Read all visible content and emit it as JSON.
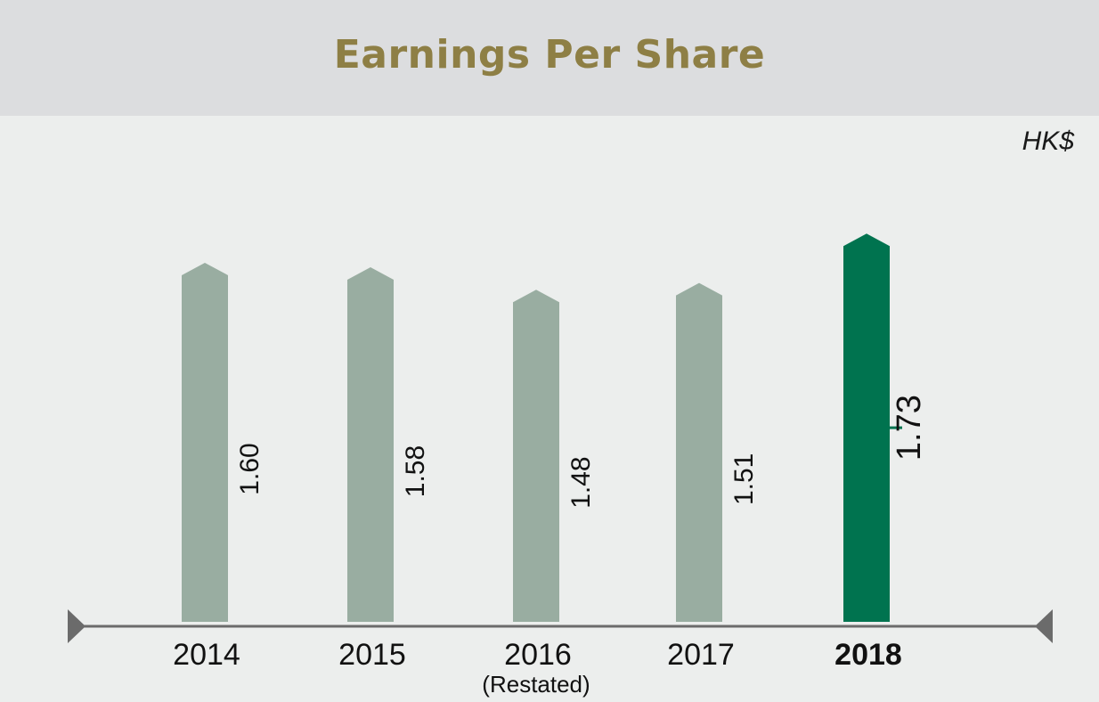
{
  "title": "Earnings Per Share",
  "unit": "HK$",
  "colors": {
    "bar": "#99ada1",
    "highlight": "#00734f",
    "axis": "#6b6b6b",
    "title": "#8e7f45"
  },
  "chart_data": {
    "type": "bar",
    "title": "Earnings Per Share",
    "ylabel": "HK$",
    "categories": [
      "2014",
      "2015",
      "2016",
      "2017",
      "2018"
    ],
    "category_notes": [
      "",
      "",
      "(Restated)",
      "",
      ""
    ],
    "values": [
      1.6,
      1.58,
      1.48,
      1.51,
      1.73
    ],
    "value_labels": [
      "1.60",
      "1.58",
      "1.48",
      "1.51",
      "1.73"
    ],
    "highlight_index": 4,
    "ylim": [
      0,
      1.85
    ],
    "grid": false,
    "legend": "none"
  }
}
